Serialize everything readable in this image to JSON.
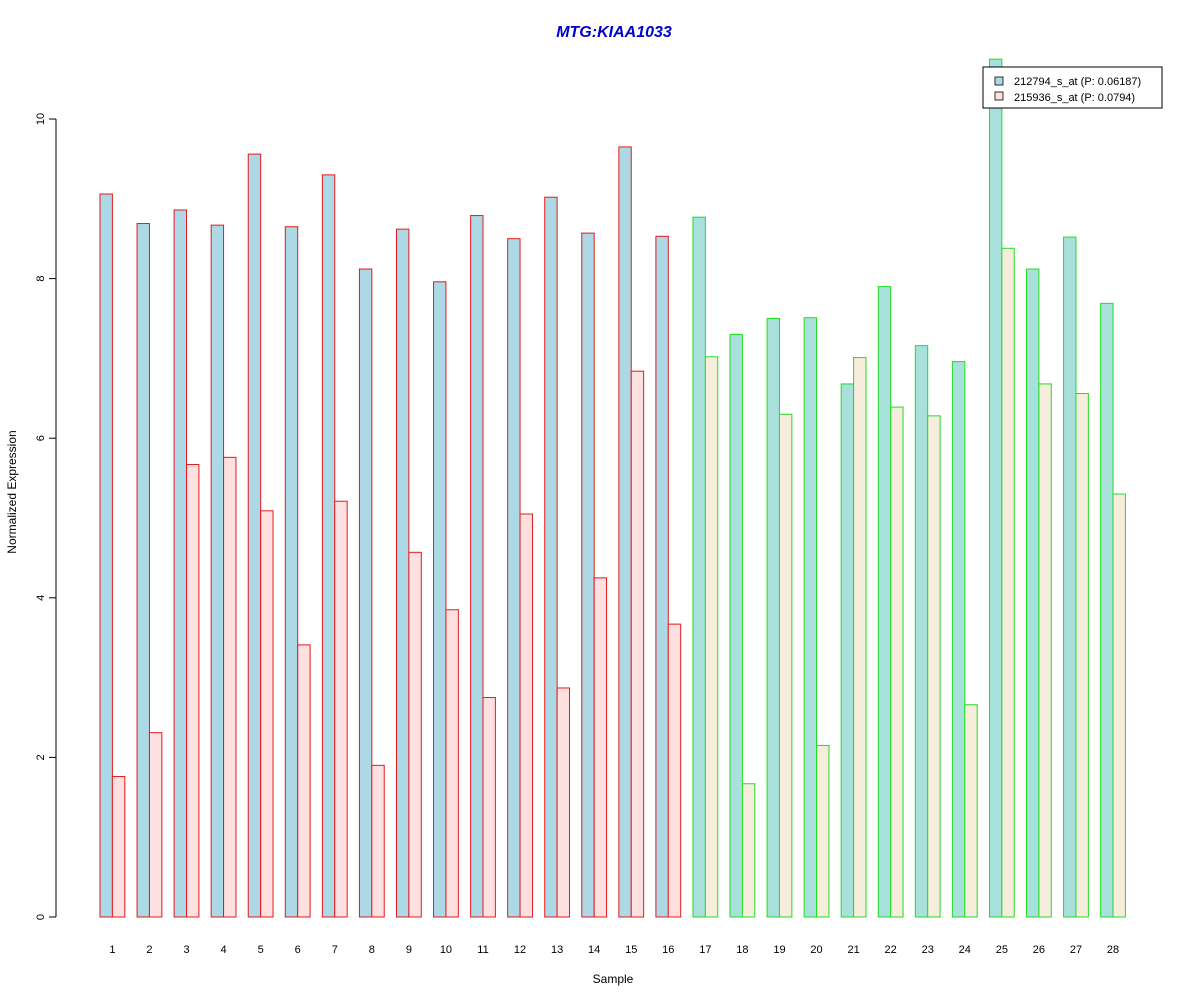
{
  "chart_data": {
    "type": "bar",
    "title": "MTG:KIAA1033",
    "xlabel": "Sample",
    "ylabel": "Normalized Expression",
    "ylim": [
      0,
      10.8
    ],
    "yticks": [
      "0",
      "2",
      "4",
      "6",
      "8",
      "10"
    ],
    "categories": [
      "1",
      "2",
      "3",
      "4",
      "5",
      "6",
      "7",
      "8",
      "9",
      "10",
      "11",
      "12",
      "13",
      "14",
      "15",
      "16",
      "17",
      "18",
      "19",
      "20",
      "21",
      "22",
      "23",
      "24",
      "25",
      "26",
      "27",
      "28"
    ],
    "series": [
      {
        "name": "212794_s_at (P: 0.06187)",
        "values": [
          9.06,
          8.69,
          8.86,
          8.67,
          9.56,
          8.65,
          9.3,
          8.12,
          8.62,
          7.96,
          8.79,
          8.5,
          9.02,
          8.57,
          9.65,
          8.53,
          8.77,
          7.3,
          7.5,
          7.51,
          6.68,
          7.9,
          7.16,
          6.96,
          10.75,
          8.12,
          8.52,
          7.69
        ]
      },
      {
        "name": "215936_s_at (P: 0.0794)",
        "values": [
          1.76,
          2.31,
          5.67,
          5.76,
          5.09,
          3.41,
          5.21,
          1.9,
          4.57,
          3.85,
          2.75,
          5.05,
          2.87,
          4.25,
          6.84,
          3.67,
          7.02,
          1.67,
          6.3,
          2.15,
          7.01,
          6.39,
          6.28,
          2.66,
          8.38,
          6.68,
          6.56,
          5.3
        ]
      }
    ],
    "group_count_first": 16,
    "colors": {
      "series1_fill": "#add8e6",
      "series1_fill_group2": "#a8e0dc",
      "series2_fill": "#ffe0e0",
      "series2_fill_group2": "#f7eddc",
      "border_group1": "#e31a1c",
      "border_group2": "#22dd22",
      "title": "#0000cc"
    },
    "legend_position": "top-right",
    "grid": false
  }
}
